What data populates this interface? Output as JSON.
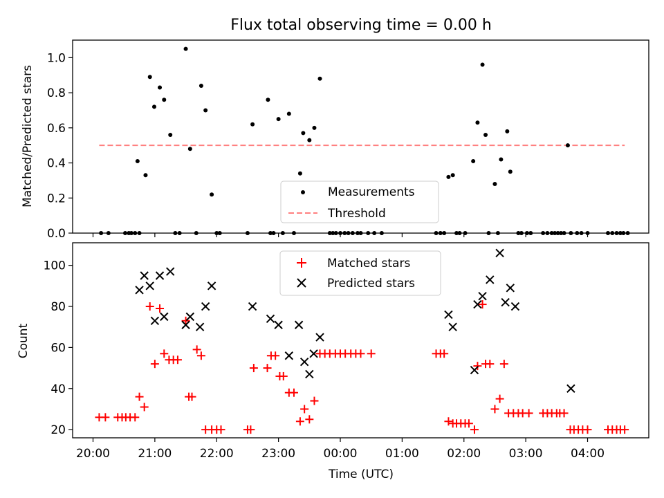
{
  "chart_data": [
    {
      "type": "scatter",
      "title": "Flux total observing time = 0.00 h",
      "xlabel": "",
      "ylabel": "Matched/Predicted stars",
      "xlim": [
        19.67,
        28.99
      ],
      "ylim": [
        0,
        1.1
      ],
      "yticks": [
        0.0,
        0.2,
        0.4,
        0.6,
        0.8,
        1.0
      ],
      "legend_position": "lower center",
      "series": [
        {
          "name": "Measurements",
          "marker": "dot",
          "color": "#000000",
          "x": [
            20.13,
            20.25,
            20.52,
            20.58,
            20.62,
            20.68,
            20.75,
            20.72,
            20.85,
            20.92,
            20.99,
            21.08,
            21.15,
            21.25,
            21.33,
            21.4,
            21.5,
            21.57,
            21.67,
            21.75,
            21.82,
            21.92,
            22.0,
            22.05,
            22.5,
            22.58,
            22.83,
            22.87,
            22.92,
            23.0,
            23.07,
            23.17,
            23.25,
            23.35,
            23.4,
            23.5,
            23.58,
            23.67,
            23.83,
            23.88,
            23.93,
            24.0,
            24.07,
            24.13,
            24.2,
            24.28,
            24.33,
            24.45,
            24.55,
            24.67,
            25.55,
            25.62,
            25.68,
            25.75,
            25.82,
            25.88,
            25.93,
            26.02,
            26.15,
            26.22,
            26.3,
            26.35,
            26.4,
            26.5,
            26.55,
            26.6,
            26.7,
            26.75,
            26.88,
            26.93,
            27.02,
            27.08,
            27.28,
            27.35,
            27.42,
            27.47,
            27.52,
            27.57,
            27.62,
            27.68,
            27.73,
            27.83,
            27.9,
            28.0,
            28.33,
            28.4,
            28.47,
            28.53,
            28.58,
            28.65
          ],
          "y": [
            0,
            0,
            0,
            0,
            0,
            0,
            0,
            0.41,
            0.33,
            0.89,
            0.72,
            0.83,
            0.76,
            0.56,
            0,
            0,
            1.05,
            0.48,
            0,
            0.84,
            0.7,
            0.22,
            0,
            0,
            0,
            0.62,
            0.76,
            0,
            0,
            0.65,
            0,
            0.68,
            0,
            0.34,
            0.57,
            0.53,
            0.6,
            0.88,
            0,
            0,
            0,
            0,
            0,
            0,
            0,
            0,
            0,
            0,
            0,
            0,
            0,
            0,
            0,
            0.32,
            0.33,
            0,
            0,
            0,
            0.41,
            0.63,
            0.96,
            0.56,
            0,
            0.28,
            0,
            0.42,
            0.58,
            0.35,
            0,
            0,
            0,
            0,
            0,
            0,
            0,
            0,
            0,
            0,
            0,
            0.5,
            0,
            0,
            0,
            0,
            0,
            0,
            0,
            0,
            0,
            0
          ]
        },
        {
          "name": "Threshold",
          "marker": "dashed-line",
          "color": "#ff7f7f",
          "x": [
            20.1,
            28.6
          ],
          "y": [
            0.5,
            0.5
          ]
        }
      ]
    },
    {
      "type": "scatter",
      "title": "",
      "xlabel": "Time (UTC)",
      "ylabel": "Count",
      "xlim": [
        19.67,
        28.99
      ],
      "ylim": [
        16,
        111
      ],
      "yticks": [
        20,
        40,
        60,
        80,
        100
      ],
      "xticks": [
        20,
        21,
        22,
        23,
        24,
        25,
        26,
        27,
        28
      ],
      "xtick_labels": [
        "20:00",
        "21:00",
        "22:00",
        "23:00",
        "00:00",
        "01:00",
        "02:00",
        "03:00",
        "04:00"
      ],
      "legend_position": "upper center",
      "series": [
        {
          "name": "Matched stars",
          "marker": "plus",
          "color": "#ff0000",
          "x": [
            20.1,
            20.2,
            20.4,
            20.47,
            20.53,
            20.6,
            20.68,
            20.75,
            20.83,
            20.92,
            21.0,
            21.08,
            21.15,
            21.23,
            21.3,
            21.37,
            21.5,
            21.55,
            21.6,
            21.68,
            21.75,
            21.82,
            21.92,
            22.0,
            22.07,
            22.5,
            22.55,
            22.6,
            22.82,
            22.88,
            22.95,
            23.02,
            23.08,
            23.17,
            23.25,
            23.35,
            23.42,
            23.5,
            23.58,
            23.67,
            23.75,
            23.83,
            23.92,
            24.0,
            24.08,
            24.17,
            24.25,
            24.33,
            24.5,
            25.55,
            25.62,
            25.68,
            25.75,
            25.82,
            25.88,
            25.95,
            26.02,
            26.08,
            26.17,
            26.22,
            26.3,
            26.35,
            26.42,
            26.5,
            26.58,
            26.65,
            26.72,
            26.8,
            26.88,
            26.95,
            27.05,
            27.28,
            27.35,
            27.42,
            27.5,
            27.55,
            27.62,
            27.72,
            27.78,
            27.85,
            27.92,
            28.0,
            28.33,
            28.4,
            28.47,
            28.53,
            28.6
          ],
          "y": [
            26,
            26,
            26,
            26,
            26,
            26,
            26,
            36,
            31,
            80,
            52,
            79,
            57,
            54,
            54,
            54,
            73,
            36,
            36,
            59,
            56,
            20,
            20,
            20,
            20,
            20,
            20,
            50,
            50,
            56,
            56,
            46,
            46,
            38,
            38,
            24,
            30,
            25,
            34,
            57,
            57,
            57,
            57,
            57,
            57,
            57,
            57,
            57,
            57,
            57,
            57,
            57,
            24,
            23,
            23,
            23,
            23,
            23,
            20,
            51,
            81,
            52,
            52,
            30,
            35,
            52,
            28,
            28,
            28,
            28,
            28,
            28,
            28,
            28,
            28,
            28,
            28,
            20,
            20,
            20,
            20,
            20,
            20,
            20,
            20,
            20,
            20
          ]
        },
        {
          "name": "Predicted stars",
          "marker": "x",
          "color": "#000000",
          "x": [
            20.75,
            20.83,
            20.92,
            21.0,
            21.08,
            21.15,
            21.25,
            21.5,
            21.57,
            21.73,
            21.82,
            21.92,
            22.58,
            22.87,
            23.0,
            23.17,
            23.33,
            23.42,
            23.5,
            23.57,
            23.67,
            25.75,
            25.82,
            26.17,
            26.22,
            26.3,
            26.42,
            26.58,
            26.67,
            26.75,
            26.83,
            27.73
          ],
          "y": [
            88,
            95,
            90,
            73,
            95,
            75,
            97,
            71,
            75,
            70,
            80,
            90,
            80,
            74,
            71,
            56,
            71,
            53,
            47,
            57,
            65,
            76,
            70,
            49,
            81,
            85,
            93,
            106,
            82,
            89,
            80,
            40
          ]
        }
      ]
    }
  ]
}
